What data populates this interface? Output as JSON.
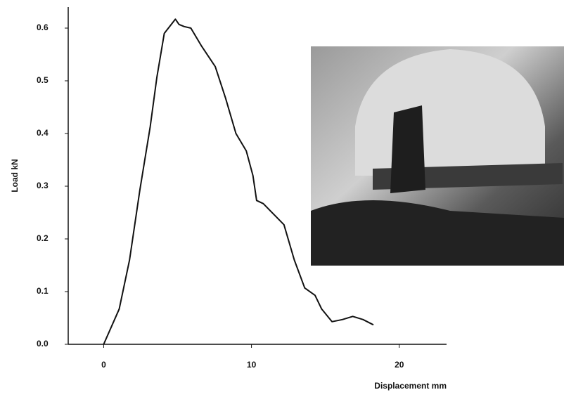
{
  "chart_data": {
    "type": "line",
    "x_label": "Displacement mm",
    "y_label": "Load kN",
    "x": [
      0,
      1.05,
      1.75,
      2.45,
      3.15,
      3.6,
      4.1,
      4.85,
      5.1,
      5.45,
      5.9,
      6.6,
      7.55,
      8.25,
      8.95,
      9.65,
      10.1,
      10.35,
      10.8,
      11.5,
      12.2,
      12.9,
      13.6,
      14.3,
      14.75,
      15.45,
      16.15,
      16.85,
      17.55,
      18.25
    ],
    "values": [
      0,
      0.067,
      0.16,
      0.293,
      0.413,
      0.507,
      0.59,
      0.617,
      0.607,
      0.603,
      0.6,
      0.567,
      0.527,
      0.467,
      0.4,
      0.367,
      0.32,
      0.273,
      0.267,
      0.247,
      0.227,
      0.16,
      0.107,
      0.093,
      0.067,
      0.043,
      0.047,
      0.053,
      0.047,
      0.037
    ],
    "color": "#111111",
    "xlim": [
      -2.4,
      23.2
    ],
    "xticks": [
      0,
      10,
      20
    ],
    "ylim": [
      0,
      0.64
    ],
    "yticks": [
      {
        "value": 0,
        "label": "0.0"
      },
      0.1,
      0.2,
      0.3,
      0.4,
      0.5,
      0.6
    ],
    "grid": false
  }
}
